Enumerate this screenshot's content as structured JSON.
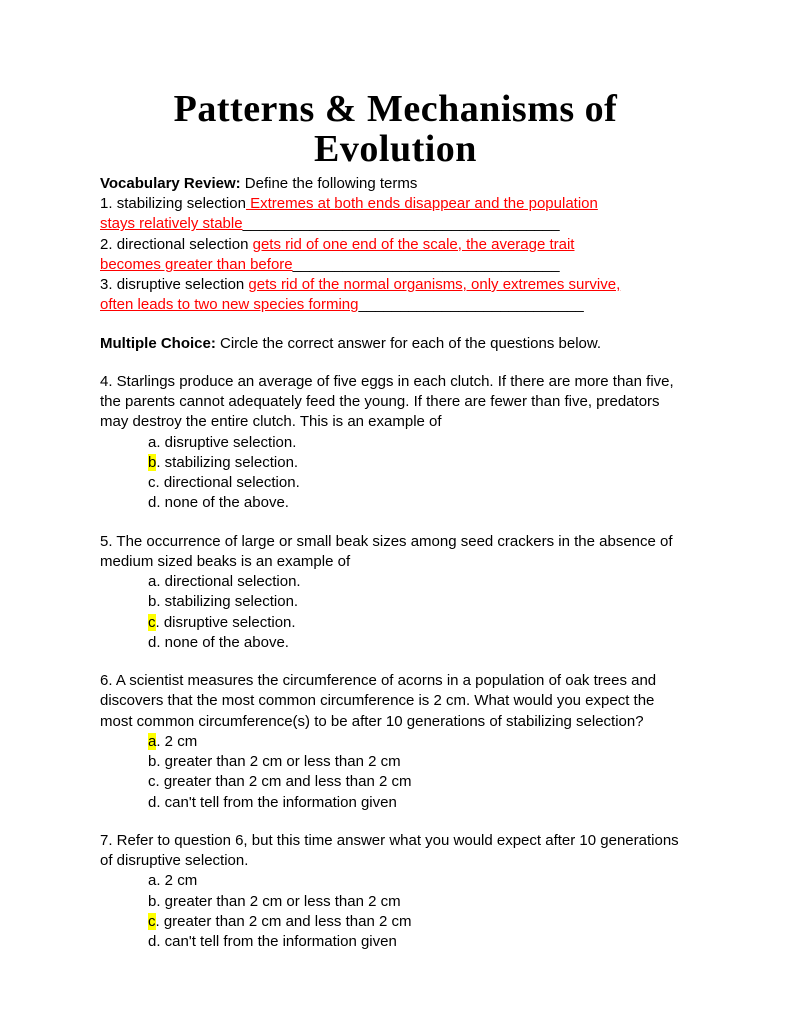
{
  "title_line1": "Patterns & Mechanisms of",
  "title_line2": "Evolution",
  "vocab": {
    "heading": "Vocabulary Review:",
    "instruction": " Define the following terms",
    "items": [
      {
        "num": "1. ",
        "term": "stabilizing selection",
        "answer_line1": "Extremes at both ends disappear and the population",
        "answer_line2": "stays relatively stable",
        "trail1": "",
        "trail2": "______________________________________"
      },
      {
        "num": "2. ",
        "term": "directional selection ",
        "answer_line1": "gets rid of one end of the scale, the average trait",
        "answer_line2": "becomes greater than before",
        "trail1": "",
        "trail2": "________________________________"
      },
      {
        "num": "3. ",
        "term": "disruptive selection ",
        "answer_line1": "gets rid of the normal organisms, only extremes survive,",
        "answer_line2": "often leads to two new species forming",
        "trail1": "",
        "trail2": "___________________________"
      }
    ]
  },
  "mc": {
    "heading": "Multiple Choice:",
    "instruction": " Circle the correct answer for each of the questions below."
  },
  "questions": [
    {
      "num": "4.",
      "stem": " Starlings produce an average of five eggs in each clutch. If there are more than five, the parents cannot adequately feed the young. If there are fewer than five, predators may destroy the entire clutch. This is an example of",
      "choices": [
        {
          "letter": "a",
          "text": ". disruptive selection.",
          "hl": false
        },
        {
          "letter": "b",
          "text": ". stabilizing selection.",
          "hl": true
        },
        {
          "letter": "c",
          "text": ". directional selection.",
          "hl": false
        },
        {
          "letter": "d",
          "text": ". none of the above.",
          "hl": false
        }
      ]
    },
    {
      "num": "5.",
      "stem": " The occurrence of large or small beak sizes among seed crackers in the absence of medium sized beaks is an example of",
      "choices": [
        {
          "letter": "a",
          "text": ". directional selection.",
          "hl": false
        },
        {
          "letter": "b",
          "text": ". stabilizing selection.",
          "hl": false
        },
        {
          "letter": "c",
          "text": ". disruptive selection.",
          "hl": true
        },
        {
          "letter": "d",
          "text": ". none of the above.",
          "hl": false
        }
      ]
    },
    {
      "num": "6.",
      "stem": " A scientist measures the circumference of acorns in a population of oak trees and discovers that the most common circumference is 2 cm. What would you expect the most common circumference(s) to be after 10 generations of stabilizing selection?",
      "choices": [
        {
          "letter": "a",
          "text": ". 2 cm",
          "hl": true
        },
        {
          "letter": "b",
          "text": ". greater than 2 cm or less than 2 cm",
          "hl": false
        },
        {
          "letter": "c",
          "text": ". greater than 2 cm and less than 2 cm",
          "hl": false
        },
        {
          "letter": "d",
          "text": ". can't tell from the information given",
          "hl": false
        }
      ]
    },
    {
      "num": "7.",
      "stem": " Refer to question 6, but this time answer what you would expect after 10 generations of disruptive selection.",
      "choices": [
        {
          "letter": "a",
          "text": ". 2 cm",
          "hl": false
        },
        {
          "letter": "b",
          "text": ". greater than 2 cm or less than 2 cm",
          "hl": false
        },
        {
          "letter": "c",
          "text": ". greater than 2 cm and less than 2 cm",
          "hl": true
        },
        {
          "letter": "d",
          "text": ". can't tell from the information given",
          "hl": false
        }
      ]
    }
  ]
}
